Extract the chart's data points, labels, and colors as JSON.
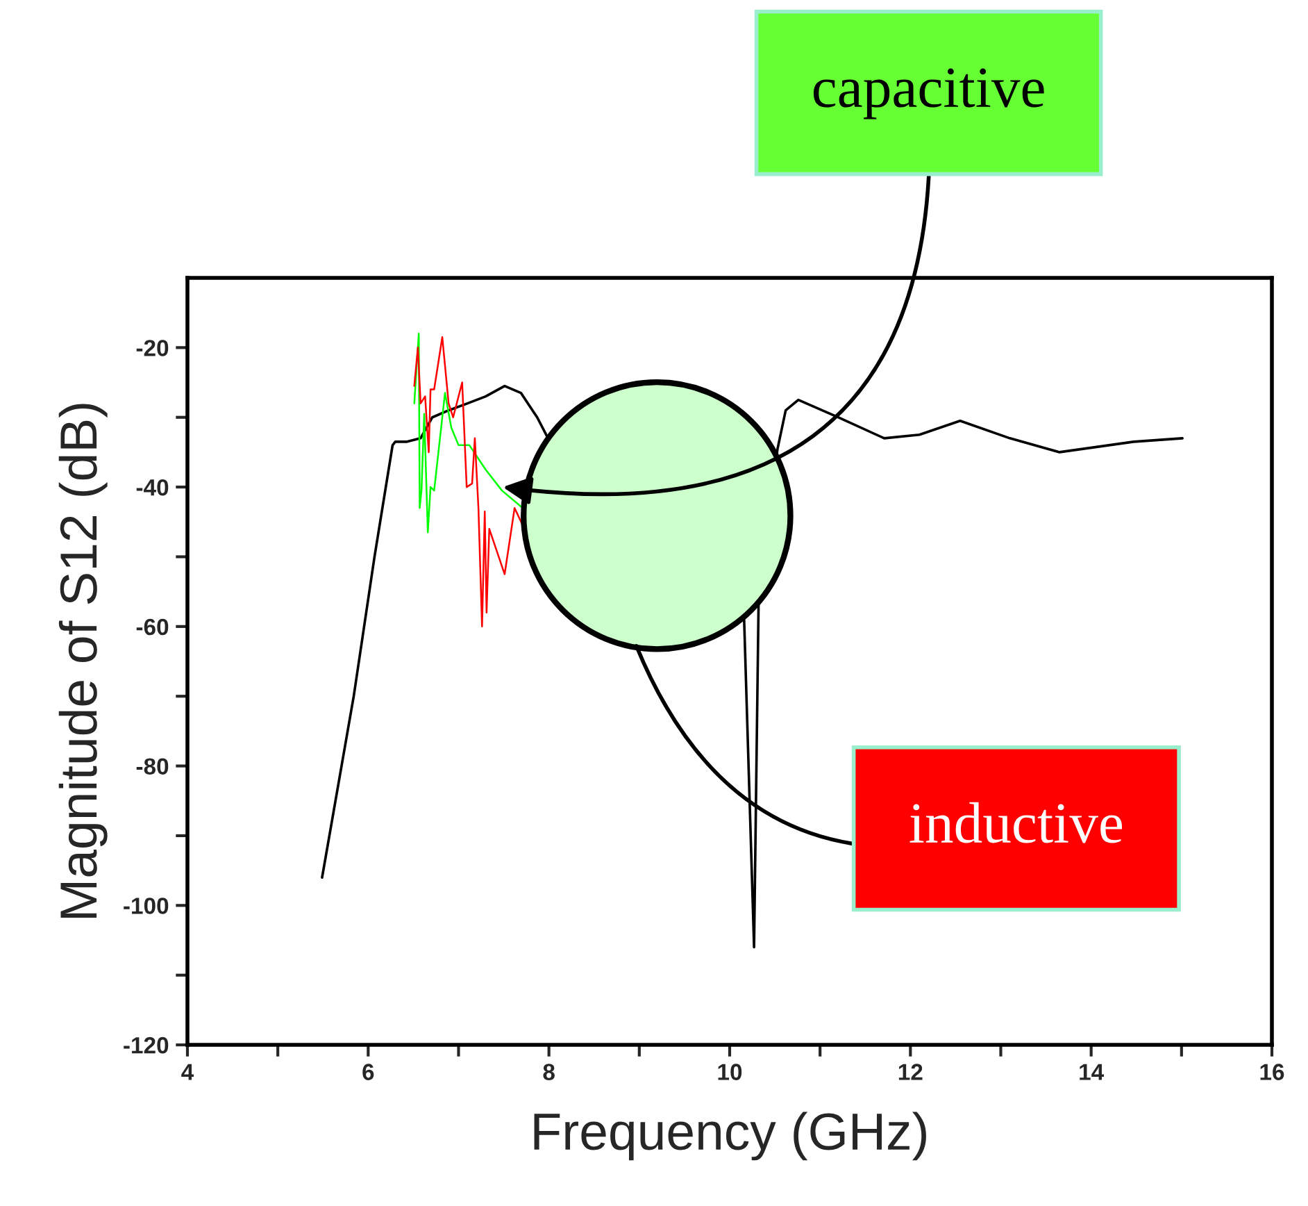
{
  "chart_data": {
    "type": "line",
    "xlabel": "Frequency (GHz)",
    "ylabel": "Magnitude of S12 (dB)",
    "xlim": [
      4,
      16
    ],
    "ylim": [
      -120,
      -10
    ],
    "xticks": [
      4,
      {
        "value": 5,
        "label": null
      },
      6,
      {
        "value": 7,
        "label": null
      },
      8,
      {
        "value": 9,
        "label": null
      },
      10,
      {
        "value": 11,
        "label": null
      },
      12,
      {
        "value": 13,
        "label": null
      },
      14,
      {
        "value": 15,
        "label": null
      },
      16
    ],
    "yticks": [
      -120,
      {
        "value": -110,
        "label": null
      },
      -100,
      {
        "value": -90,
        "label": null
      },
      -80,
      {
        "value": -70,
        "label": null
      },
      -60,
      {
        "value": -50,
        "label": null
      },
      -40,
      {
        "value": -30,
        "label": null
      },
      -20
    ],
    "grid": false,
    "legend": false,
    "marker": "none",
    "line_style": "solid",
    "series": [
      {
        "color": "#000000",
        "x": [
          5.49,
          5.84,
          6.07,
          6.27,
          6.3,
          6.43,
          6.58,
          6.71,
          6.89,
          7.1,
          7.3,
          7.51,
          7.69,
          7.87,
          7.99,
          9.0,
          10.16,
          10.27,
          10.32,
          10.53,
          10.62,
          10.76,
          11.2,
          11.71,
          12.1,
          12.55,
          13.1,
          13.65,
          14.47,
          15.01
        ],
        "values": [
          -96,
          -70,
          -50,
          -34,
          -33.5,
          -33.5,
          -33,
          -30,
          -29,
          -28,
          -27,
          -25.5,
          -26.5,
          -30,
          -33,
          null,
          -59,
          -106,
          -56.5,
          -34.5,
          -29,
          -27.5,
          -30,
          -33,
          -32.5,
          -30.5,
          -33,
          -35,
          -33.5,
          -33
        ]
      },
      {
        "color": "#00ff00",
        "x": [
          6.51,
          6.56,
          6.57,
          6.59,
          6.62,
          6.66,
          6.69,
          6.73,
          6.85,
          6.92,
          7.0,
          7.12,
          7.3,
          7.48,
          7.71
        ],
        "values": [
          -28,
          -18,
          -43,
          -40.5,
          -29.5,
          -46.5,
          -40,
          -40.5,
          -26.5,
          -31.5,
          -34,
          -34,
          -37.5,
          -40.5,
          -43
        ]
      },
      {
        "color": "#ff0000",
        "x": [
          6.51,
          6.55,
          6.58,
          6.63,
          6.67,
          6.69,
          6.73,
          6.82,
          6.89,
          6.94,
          7.04,
          7.09,
          7.15,
          7.18,
          7.22,
          7.26,
          7.29,
          7.31,
          7.34,
          7.51,
          7.62,
          7.71
        ],
        "values": [
          -25.5,
          -20,
          -28,
          -27,
          -35,
          -26,
          -26,
          -18.5,
          -28,
          -30,
          -25,
          -40,
          -39.5,
          -33,
          -43,
          -60,
          -43.5,
          -58,
          -46,
          -52.5,
          -43,
          -45.5
        ]
      }
    ],
    "annotations": [
      {
        "text": "capacitive",
        "x": 7.49,
        "y": -40
      },
      "inductive"
    ]
  }
}
